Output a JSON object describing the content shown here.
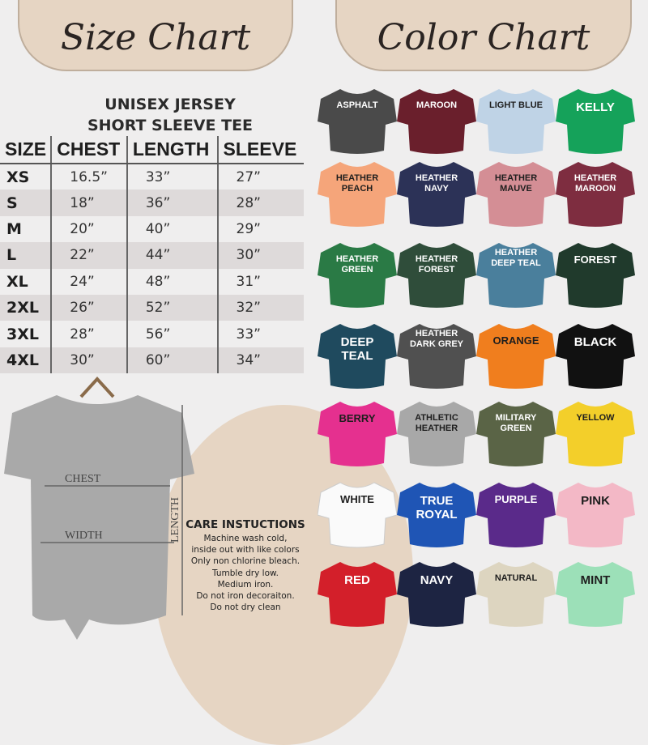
{
  "size_chart": {
    "heading": "Size Chart",
    "title_line1": "UNISEX JERSEY",
    "title_line2": "SHORT SLEEVE TEE",
    "columns": [
      "SIZE",
      "CHEST",
      "LENGTH",
      "SLEEVE"
    ],
    "rows": [
      [
        "XS",
        "16.5”",
        "33”",
        "27”"
      ],
      [
        "S",
        "18”",
        "36”",
        "28”"
      ],
      [
        "M",
        "20”",
        "40”",
        "29”"
      ],
      [
        "L",
        "22”",
        "44”",
        "30”"
      ],
      [
        "XL",
        "24”",
        "48”",
        "31”"
      ],
      [
        "2XL",
        "26”",
        "52”",
        "32”"
      ],
      [
        "3XL",
        "28”",
        "56”",
        "33”"
      ],
      [
        "4XL",
        "30”",
        "60”",
        "34”"
      ]
    ]
  },
  "diagram": {
    "chest": "CHEST",
    "width": "WIDTH",
    "length": "LENGTH",
    "shirt_color": "#a9a9a9"
  },
  "care": {
    "title": "CARE INSTUCTIONS",
    "lines": [
      "Machine wash cold,",
      "inside out with like colors",
      "Only non chlorine bleach.",
      "Tumble dry low.",
      "Medium iron.",
      "Do not iron decoraiton.",
      "Do not dry clean"
    ]
  },
  "color_chart": {
    "heading": "Color Chart",
    "colors": [
      {
        "name": "ASPHALT",
        "hex": "#4a4a4a",
        "text": "#ffffff"
      },
      {
        "name": "MAROON",
        "hex": "#6a1f2c",
        "text": "#ffffff"
      },
      {
        "name": "LIGHT BLUE",
        "hex": "#bfd3e6",
        "text": "#1e1e1e"
      },
      {
        "name": "KELLY",
        "hex": "#15a25a",
        "text": "#ffffff"
      },
      {
        "name": "HEATHER PEACH",
        "hex": "#f5a57a",
        "text": "#1e1e1e"
      },
      {
        "name": "HEATHER NAVY",
        "hex": "#2c3257",
        "text": "#ffffff"
      },
      {
        "name": "HEATHER MAUVE",
        "hex": "#d48e95",
        "text": "#1e1e1e"
      },
      {
        "name": "HEATHER MAROON",
        "hex": "#7e2d40",
        "text": "#ffffff"
      },
      {
        "name": "HEATHER GREEN",
        "hex": "#2a7a45",
        "text": "#ffffff"
      },
      {
        "name": "HEATHER FOREST",
        "hex": "#2f4d3a",
        "text": "#ffffff"
      },
      {
        "name": "HEATHER DEEP TEAL",
        "hex": "#4a7f9c",
        "text": "#ffffff"
      },
      {
        "name": "FOREST",
        "hex": "#203a2c",
        "text": "#ffffff"
      },
      {
        "name": "DEEP TEAL",
        "hex": "#1f4a5e",
        "text": "#ffffff"
      },
      {
        "name": "HEATHER DARK GREY",
        "hex": "#505050",
        "text": "#ffffff"
      },
      {
        "name": "ORANGE",
        "hex": "#f07e1e",
        "text": "#1e1e1e"
      },
      {
        "name": "BLACK",
        "hex": "#111111",
        "text": "#ffffff"
      },
      {
        "name": "BERRY",
        "hex": "#e5308f",
        "text": "#1e1e1e"
      },
      {
        "name": "ATHLETIC HEATHER",
        "hex": "#a8a8a8",
        "text": "#1e1e1e"
      },
      {
        "name": "MILITARY GREEN",
        "hex": "#5a6446",
        "text": "#ffffff"
      },
      {
        "name": "YELLOW",
        "hex": "#f3cf2a",
        "text": "#1e1e1e"
      },
      {
        "name": "WHITE",
        "hex": "#fafafa",
        "text": "#1e1e1e"
      },
      {
        "name": "TRUE ROYAL",
        "hex": "#1f55b5",
        "text": "#ffffff"
      },
      {
        "name": "PURPLE",
        "hex": "#5a2a8a",
        "text": "#ffffff"
      },
      {
        "name": "PINK",
        "hex": "#f3b8c6",
        "text": "#1e1e1e"
      },
      {
        "name": "RED",
        "hex": "#d31f2a",
        "text": "#ffffff"
      },
      {
        "name": "NAVY",
        "hex": "#1d2442",
        "text": "#ffffff"
      },
      {
        "name": "NATURAL",
        "hex": "#ddd5c0",
        "text": "#1e1e1e"
      },
      {
        "name": "MINT",
        "hex": "#9ce0b8",
        "text": "#1e1e1e"
      }
    ]
  }
}
